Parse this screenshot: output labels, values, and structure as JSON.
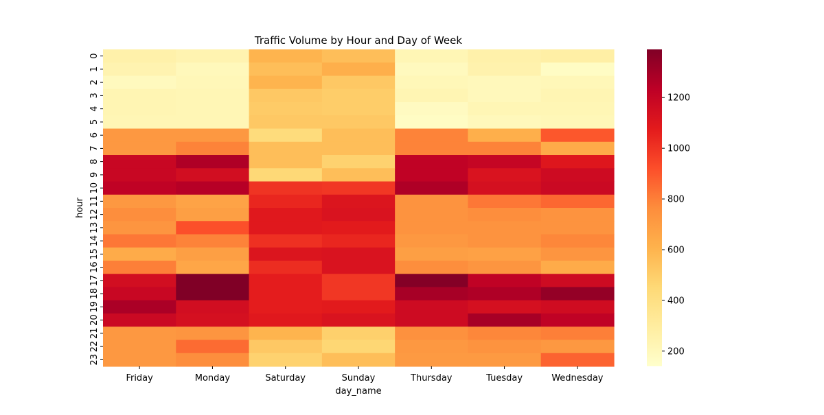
{
  "chart_data": {
    "type": "heatmap",
    "title": "Traffic Volume by Hour and Day of Week",
    "xlabel": "day_name",
    "ylabel": "hour",
    "x_categories": [
      "Friday",
      "Monday",
      "Saturday",
      "Sunday",
      "Thursday",
      "Tuesday",
      "Wednesday"
    ],
    "y_categories": [
      "0",
      "1",
      "2",
      "3",
      "4",
      "5",
      "6",
      "7",
      "8",
      "9",
      "10",
      "11",
      "12",
      "13",
      "14",
      "15",
      "16",
      "17",
      "18",
      "19",
      "20",
      "21",
      "22",
      "23"
    ],
    "values": [
      [
        260,
        240,
        600,
        560,
        220,
        260,
        280
      ],
      [
        240,
        200,
        560,
        620,
        190,
        250,
        170
      ],
      [
        190,
        210,
        600,
        520,
        210,
        200,
        210
      ],
      [
        230,
        220,
        520,
        500,
        230,
        200,
        230
      ],
      [
        230,
        220,
        510,
        500,
        180,
        220,
        220
      ],
      [
        220,
        220,
        520,
        520,
        170,
        200,
        210
      ],
      [
        720,
        720,
        430,
        560,
        790,
        620,
        900
      ],
      [
        720,
        790,
        560,
        560,
        790,
        790,
        640
      ],
      [
        1190,
        1270,
        560,
        480,
        1220,
        1200,
        1100
      ],
      [
        1190,
        1150,
        450,
        560,
        1220,
        1120,
        1170
      ],
      [
        1220,
        1250,
        1000,
        990,
        1270,
        1140,
        1180
      ],
      [
        720,
        670,
        1040,
        1110,
        740,
        820,
        860
      ],
      [
        760,
        690,
        1090,
        1120,
        740,
        760,
        740
      ],
      [
        730,
        920,
        1090,
        1080,
        740,
        740,
        740
      ],
      [
        820,
        790,
        1010,
        1040,
        720,
        740,
        780
      ],
      [
        640,
        690,
        1110,
        1120,
        690,
        680,
        730
      ],
      [
        800,
        660,
        1020,
        1120,
        760,
        730,
        640
      ],
      [
        1150,
        1390,
        1070,
        990,
        1380,
        1220,
        1170
      ],
      [
        1190,
        1390,
        1070,
        990,
        1290,
        1270,
        1340
      ],
      [
        1280,
        1150,
        1070,
        1080,
        1170,
        1140,
        1160
      ],
      [
        1180,
        1140,
        1090,
        1120,
        1170,
        1290,
        1220
      ],
      [
        720,
        730,
        600,
        490,
        750,
        780,
        800
      ],
      [
        720,
        850,
        520,
        460,
        720,
        740,
        720
      ],
      [
        720,
        760,
        480,
        560,
        710,
        710,
        870
      ]
    ],
    "vmin": 140,
    "vmax": 1390,
    "colorbar_ticks": [
      200,
      400,
      600,
      800,
      1000,
      1200
    ],
    "colormap": "YlOrRd"
  }
}
